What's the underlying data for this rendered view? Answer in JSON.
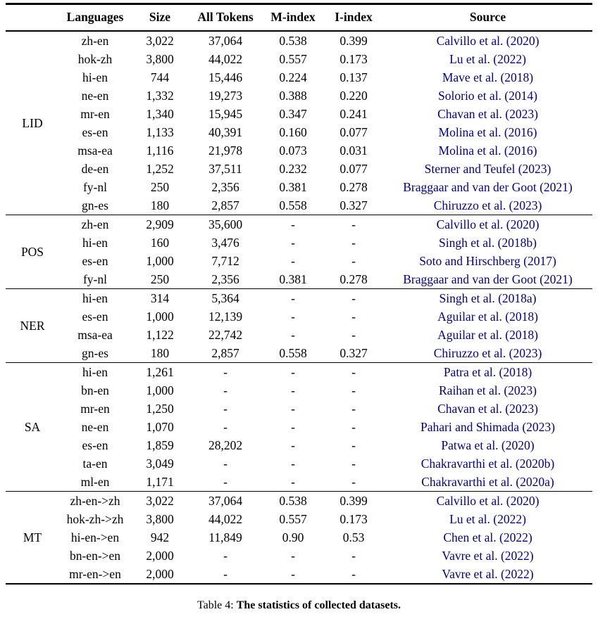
{
  "table": {
    "headers": [
      "Languages",
      "Size",
      "All Tokens",
      "M-index",
      "I-index",
      "Source"
    ],
    "groups": [
      {
        "label": "LID",
        "rows": [
          {
            "languages": "zh-en",
            "size": "3,022",
            "tokens": "37,064",
            "m_index": "0.538",
            "i_index": "0.399",
            "source": "Calvillo et al. (2020)"
          },
          {
            "languages": "hok-zh",
            "size": "3,800",
            "tokens": "44,022",
            "m_index": "0.557",
            "i_index": "0.173",
            "source": "Lu et al. (2022)"
          },
          {
            "languages": "hi-en",
            "size": "744",
            "tokens": "15,446",
            "m_index": "0.224",
            "i_index": "0.137",
            "source": "Mave et al. (2018)"
          },
          {
            "languages": "ne-en",
            "size": "1,332",
            "tokens": "19,273",
            "m_index": "0.388",
            "i_index": "0.220",
            "source": "Solorio et al. (2014)"
          },
          {
            "languages": "mr-en",
            "size": "1,340",
            "tokens": "15,945",
            "m_index": "0.347",
            "i_index": "0.241",
            "source": "Chavan et al. (2023)"
          },
          {
            "languages": "es-en",
            "size": "1,133",
            "tokens": "40,391",
            "m_index": "0.160",
            "i_index": "0.077",
            "source": "Molina et al. (2016)"
          },
          {
            "languages": "msa-ea",
            "size": "1,116",
            "tokens": "21,978",
            "m_index": "0.073",
            "i_index": "0.031",
            "source": "Molina et al. (2016)"
          },
          {
            "languages": "de-en",
            "size": "1,252",
            "tokens": "37,511",
            "m_index": "0.232",
            "i_index": "0.077",
            "source": "Sterner and Teufel (2023)"
          },
          {
            "languages": "fy-nl",
            "size": "250",
            "tokens": "2,356",
            "m_index": "0.381",
            "i_index": "0.278",
            "source": "Braggaar and van der Goot (2021)"
          },
          {
            "languages": "gn-es",
            "size": "180",
            "tokens": "2,857",
            "m_index": "0.558",
            "i_index": "0.327",
            "source": "Chiruzzo et al. (2023)"
          }
        ]
      },
      {
        "label": "POS",
        "rows": [
          {
            "languages": "zh-en",
            "size": "2,909",
            "tokens": "35,600",
            "m_index": "-",
            "i_index": "-",
            "source": "Calvillo et al. (2020)"
          },
          {
            "languages": "hi-en",
            "size": "160",
            "tokens": "3,476",
            "m_index": "-",
            "i_index": "-",
            "source": "Singh et al. (2018b)"
          },
          {
            "languages": "es-en",
            "size": "1,000",
            "tokens": "7,712",
            "m_index": "-",
            "i_index": "-",
            "source": "Soto and Hirschberg (2017)"
          },
          {
            "languages": "fy-nl",
            "size": "250",
            "tokens": "2,356",
            "m_index": "0.381",
            "i_index": "0.278",
            "source": "Braggaar and van der Goot (2021)"
          }
        ]
      },
      {
        "label": "NER",
        "rows": [
          {
            "languages": "hi-en",
            "size": "314",
            "tokens": "5,364",
            "m_index": "-",
            "i_index": "-",
            "source": "Singh et al. (2018a)"
          },
          {
            "languages": "es-en",
            "size": "1,000",
            "tokens": "12,139",
            "m_index": "-",
            "i_index": "-",
            "source": "Aguilar et al. (2018)"
          },
          {
            "languages": "msa-ea",
            "size": "1,122",
            "tokens": "22,742",
            "m_index": "-",
            "i_index": "-",
            "source": "Aguilar et al. (2018)"
          },
          {
            "languages": "gn-es",
            "size": "180",
            "tokens": "2,857",
            "m_index": "0.558",
            "i_index": "0.327",
            "source": "Chiruzzo et al. (2023)"
          }
        ]
      },
      {
        "label": "SA",
        "rows": [
          {
            "languages": "hi-en",
            "size": "1,261",
            "tokens": "-",
            "m_index": "-",
            "i_index": "-",
            "source": "Patra et al. (2018)"
          },
          {
            "languages": "bn-en",
            "size": "1,000",
            "tokens": "-",
            "m_index": "-",
            "i_index": "-",
            "source": "Raihan et al. (2023)"
          },
          {
            "languages": "mr-en",
            "size": "1,250",
            "tokens": "-",
            "m_index": "-",
            "i_index": "-",
            "source": "Chavan et al. (2023)"
          },
          {
            "languages": "ne-en",
            "size": "1,070",
            "tokens": "-",
            "m_index": "-",
            "i_index": "-",
            "source": "Pahari and Shimada (2023)"
          },
          {
            "languages": "es-en",
            "size": "1,859",
            "tokens": "28,202",
            "m_index": "-",
            "i_index": "-",
            "source": "Patwa et al. (2020)"
          },
          {
            "languages": "ta-en",
            "size": "3,049",
            "tokens": "-",
            "m_index": "-",
            "i_index": "-",
            "source": "Chakravarthi et al. (2020b)"
          },
          {
            "languages": "ml-en",
            "size": "1,171",
            "tokens": "-",
            "m_index": "-",
            "i_index": "-",
            "source": "Chakravarthi et al. (2020a)"
          }
        ]
      },
      {
        "label": "MT",
        "rows": [
          {
            "languages": "zh-en->zh",
            "size": "3,022",
            "tokens": "37,064",
            "m_index": "0.538",
            "i_index": "0.399",
            "source": "Calvillo et al. (2020)"
          },
          {
            "languages": "hok-zh->zh",
            "size": "3,800",
            "tokens": "44,022",
            "m_index": "0.557",
            "i_index": "0.173",
            "source": "Lu et al. (2022)"
          },
          {
            "languages": "hi-en->en",
            "size": "942",
            "tokens": "11,849",
            "m_index": "0.90",
            "i_index": "0.53",
            "source": "Chen et al. (2022)"
          },
          {
            "languages": "bn-en->en",
            "size": "2,000",
            "tokens": "-",
            "m_index": "-",
            "i_index": "-",
            "source": "Vavre et al. (2022)"
          },
          {
            "languages": "mr-en->en",
            "size": "2,000",
            "tokens": "-",
            "m_index": "-",
            "i_index": "-",
            "source": "Vavre et al. (2022)"
          }
        ]
      }
    ]
  },
  "caption": {
    "prefix": "Table 4: ",
    "title": "The statistics of collected datasets."
  },
  "colors": {
    "citation": "#00008B",
    "rule": "#000000"
  }
}
